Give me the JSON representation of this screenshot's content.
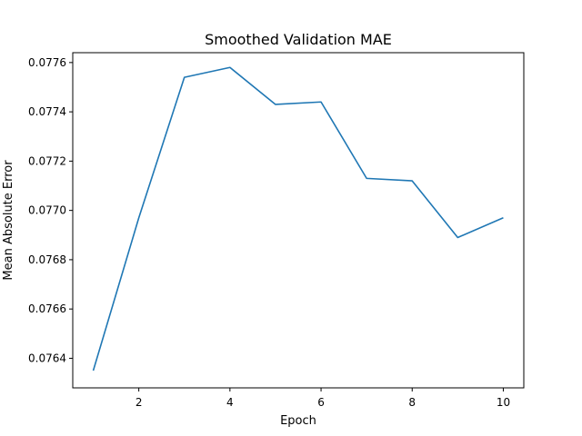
{
  "chart_data": {
    "type": "line",
    "title": "Smoothed Validation MAE",
    "xlabel": "Epoch",
    "ylabel": "Mean Absolute Error",
    "x": [
      1,
      2,
      3,
      4,
      5,
      6,
      7,
      8,
      9,
      10
    ],
    "series": [
      {
        "values": [
          0.07635,
          0.07697,
          0.07754,
          0.07758,
          0.07743,
          0.07744,
          0.07713,
          0.07712,
          0.07689,
          0.07697
        ],
        "color": "#1f77b4"
      }
    ],
    "xlim": [
      0.55,
      10.45
    ],
    "ylim": [
      0.07628,
      0.07764
    ],
    "xticks": [
      2,
      4,
      6,
      8,
      10
    ],
    "xtick_labels": [
      "2",
      "4",
      "6",
      "8",
      "10"
    ],
    "yticks": [
      0.0764,
      0.0766,
      0.0768,
      0.077,
      0.0772,
      0.0774,
      0.0776
    ],
    "ytick_labels": [
      "0.0764",
      "0.0766",
      "0.0768",
      "0.0770",
      "0.0772",
      "0.0774",
      "0.0776"
    ],
    "grid": false,
    "legend": "none"
  }
}
